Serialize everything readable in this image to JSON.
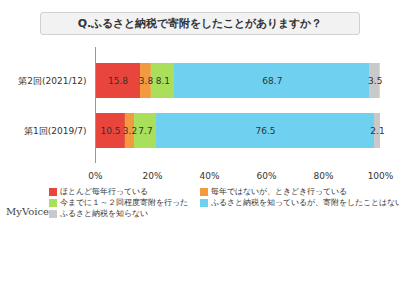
{
  "chart_data": {
    "type": "bar",
    "title": "Q.ふるさと納税で寄附をしたことがありますか？",
    "orientation": "horizontal",
    "stacked": true,
    "data_labels": true,
    "grid": false,
    "categories": [
      "第2回(2021/12)",
      "第1回(2019/7)"
    ],
    "series": [
      {
        "name": "ほとんど毎年行っている",
        "color": "#e8453c",
        "values": [
          15.8,
          10.5
        ]
      },
      {
        "name": "毎年ではないが、ときどき行っている",
        "color": "#f39a3e",
        "values": [
          3.8,
          3.2
        ]
      },
      {
        "name": "今までに１～２回程度寄附を行った",
        "color": "#a9df5b",
        "values": [
          8.1,
          7.7
        ]
      },
      {
        "name": "ふるさと納税を知っているが、寄附をしたことはない",
        "color": "#6fd0f0",
        "values": [
          68.7,
          76.5
        ]
      },
      {
        "name": "ふるさと納税を知らない",
        "color": "#c9c9c9",
        "values": [
          3.5,
          2.1
        ]
      }
    ],
    "xlim": [
      0,
      100
    ],
    "xticks": [
      {
        "value": 0,
        "label": "0%"
      },
      {
        "value": 20,
        "label": "20%"
      },
      {
        "value": 40,
        "label": "40%"
      },
      {
        "value": 60,
        "label": "60%"
      },
      {
        "value": 80,
        "label": "80%"
      },
      {
        "value": 100,
        "label": "100%"
      }
    ],
    "source": "MyVoice"
  }
}
